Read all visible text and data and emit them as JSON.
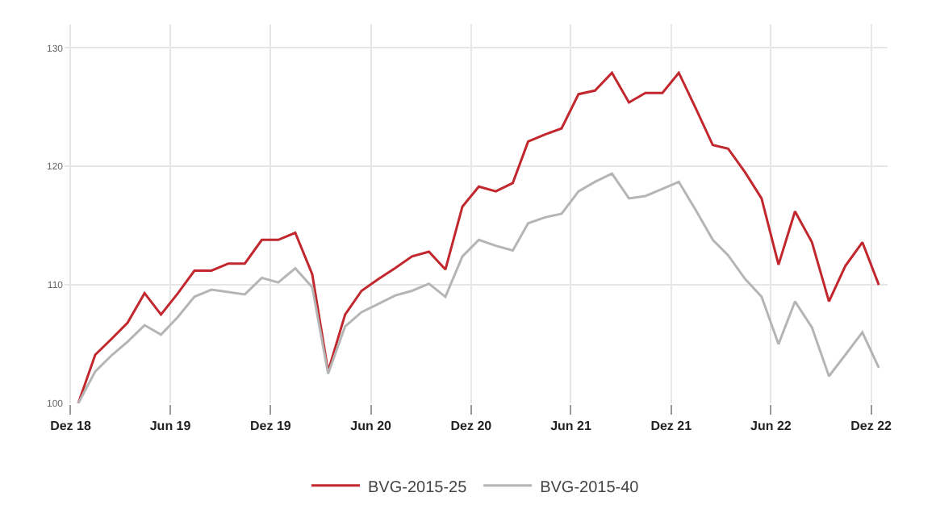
{
  "chart_data": {
    "type": "line",
    "x": [
      "2018-12-15",
      "2019-01-15",
      "2019-02-15",
      "2019-03-15",
      "2019-04-15",
      "2019-05-15",
      "2019-06-15",
      "2019-07-15",
      "2019-08-15",
      "2019-09-15",
      "2019-10-15",
      "2019-11-15",
      "2019-12-15",
      "2020-01-15",
      "2020-02-15",
      "2020-03-15",
      "2020-04-15",
      "2020-05-15",
      "2020-06-15",
      "2020-07-15",
      "2020-08-15",
      "2020-09-15",
      "2020-10-15",
      "2020-11-15",
      "2020-12-15",
      "2021-01-15",
      "2021-02-15",
      "2021-03-15",
      "2021-04-15",
      "2021-05-15",
      "2021-06-15",
      "2021-07-15",
      "2021-08-15",
      "2021-09-15",
      "2021-10-15",
      "2021-11-15",
      "2021-12-15",
      "2022-01-15",
      "2022-02-15",
      "2022-03-15",
      "2022-04-15",
      "2022-05-15",
      "2022-06-15",
      "2022-07-15",
      "2022-08-15",
      "2022-09-15",
      "2022-10-15",
      "2022-11-15",
      "2022-12-15"
    ],
    "series": [
      {
        "name": "BVG-2015-25",
        "color": "#c1272d",
        "values": [
          100,
          104.1,
          105.5,
          106.8,
          109.3,
          107.5,
          109.3,
          111.2,
          111.2,
          111.8,
          111.8,
          113.8,
          113.8,
          114.4,
          110.9,
          102.7,
          107.5,
          109.5,
          110.5,
          111.4,
          112.4,
          112.8,
          111.3,
          116.6,
          118.3,
          117.9,
          118.6,
          122.1,
          122.7,
          123.2,
          126.1,
          126.4,
          127.9,
          125.4,
          126.2,
          126.2,
          127.9,
          124.9,
          121.8,
          121.5,
          119.5,
          117.3,
          111.7,
          116.2,
          113.6,
          108.6,
          111.6,
          113.6,
          110.0
        ]
      },
      {
        "name": "BVG-2015-40",
        "color": "#b5b5b5",
        "values": [
          100,
          102.7,
          104.1,
          105.2,
          106.6,
          105.8,
          107.3,
          109.0,
          109.6,
          109.4,
          109.2,
          110.6,
          110.2,
          111.4,
          109.8,
          102.5,
          106.5,
          107.7,
          108.4,
          109.1,
          109.5,
          110.1,
          109.0,
          112.4,
          113.8,
          113.3,
          112.9,
          115.2,
          115.7,
          116.0,
          117.9,
          118.7,
          119.4,
          117.3,
          117.5,
          118.1,
          118.7,
          116.3,
          113.8,
          112.5,
          110.5,
          109.0,
          105.0,
          108.6,
          106.4,
          102.3,
          104.1,
          106.0,
          103.0
        ]
      }
    ],
    "xlim": [
      "2018-11-20",
      "2022-12-31"
    ],
    "xticks": [
      {
        "value": "2018-12-01",
        "label": "Dez 18"
      },
      {
        "value": "2019-06-01",
        "label": "Jun 19"
      },
      {
        "value": "2019-12-01",
        "label": "Dez 19"
      },
      {
        "value": "2020-06-01",
        "label": "Jun 20"
      },
      {
        "value": "2020-12-01",
        "label": "Dez 20"
      },
      {
        "value": "2021-06-01",
        "label": "Jun 21"
      },
      {
        "value": "2021-12-01",
        "label": "Dez 21"
      },
      {
        "value": "2022-06-01",
        "label": "Jun 22"
      },
      {
        "value": "2022-12-01",
        "label": "Dez 22"
      }
    ],
    "ylim": [
      100,
      132
    ],
    "yticks": [
      100,
      110,
      120,
      130
    ],
    "grid": true,
    "legend": "bottom",
    "marker": "none",
    "line_style": "solid"
  }
}
